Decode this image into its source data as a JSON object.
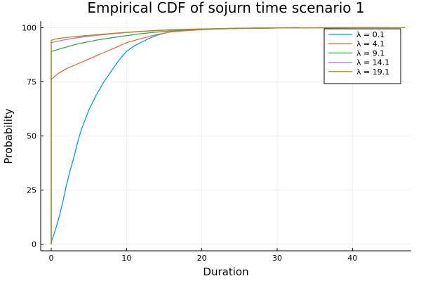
{
  "chart_data": {
    "type": "line",
    "title": "Empirical CDF of sojurn time scenario 1",
    "xlabel": "Duration",
    "ylabel": "Probability",
    "xlim": [
      -1.4,
      47.8
    ],
    "ylim": [
      -3,
      103
    ],
    "xticks": [
      0,
      10,
      20,
      30,
      40
    ],
    "yticks": [
      0,
      25,
      50,
      75,
      100
    ],
    "grid": true,
    "legend_position": "top-right",
    "series": [
      {
        "name": "λ = 0.1",
        "color": "#009AFA",
        "x": [
          0,
          0.5,
          1,
          1.5,
          2,
          2.5,
          3,
          3.5,
          4,
          5,
          6,
          7,
          8,
          9,
          10,
          11,
          12,
          13,
          14,
          15,
          16,
          17,
          18,
          20,
          22,
          25,
          28,
          33
        ],
        "y": [
          1,
          6,
          12,
          19,
          27,
          34,
          40,
          47,
          53,
          62,
          69,
          75,
          80,
          85,
          89,
          91.5,
          93.3,
          95,
          96.4,
          97.4,
          98.1,
          98.6,
          98.9,
          99.3,
          99.5,
          99.7,
          99.85,
          100
        ]
      },
      {
        "name": "λ = 4.1",
        "color": "#E36F47",
        "x": [
          0,
          0,
          0.3,
          1,
          2,
          3,
          4,
          5,
          6,
          7,
          8,
          9,
          10,
          12,
          14,
          16,
          18,
          20,
          22,
          25,
          28,
          32,
          36,
          40,
          41
        ],
        "y": [
          0,
          76,
          77,
          79,
          81,
          82.5,
          84,
          85.5,
          87,
          88.5,
          90,
          91.5,
          93,
          95,
          96.8,
          98,
          98.6,
          99,
          99.3,
          99.6,
          99.8,
          99.9,
          99.95,
          100,
          100
        ]
      },
      {
        "name": "λ = 9.1",
        "color": "#3EA44E",
        "x": [
          0,
          0,
          1,
          2,
          3,
          4,
          5,
          6,
          8,
          10,
          12,
          14,
          16,
          18,
          20,
          25,
          30,
          35,
          40,
          44
        ],
        "y": [
          0,
          89,
          90,
          91,
          92,
          92.8,
          93.5,
          94.2,
          95.3,
          96.3,
          97.2,
          97.9,
          98.5,
          98.9,
          99.2,
          99.6,
          99.8,
          99.9,
          100,
          100
        ]
      },
      {
        "name": "λ = 14.1",
        "color": "#C271D2",
        "x": [
          0,
          0,
          1,
          2,
          4,
          6,
          8,
          10,
          12,
          14,
          16,
          18,
          20,
          25,
          30,
          35,
          40,
          45
        ],
        "y": [
          0,
          93,
          93.8,
          94.5,
          95.6,
          96.4,
          97.1,
          97.7,
          98.2,
          98.6,
          98.9,
          99.1,
          99.3,
          99.6,
          99.8,
          99.9,
          100,
          100
        ]
      },
      {
        "name": "λ = 19.1",
        "color": "#AC8D18",
        "x": [
          0,
          0,
          0.3,
          1,
          2,
          4,
          6,
          8,
          10,
          12,
          14,
          16,
          18,
          20,
          25,
          30,
          35,
          40,
          47
        ],
        "y": [
          0,
          94,
          94.5,
          95,
          95.4,
          96.1,
          96.7,
          97.3,
          97.8,
          98.3,
          98.7,
          99,
          99.2,
          99.4,
          99.6,
          99.8,
          99.9,
          100,
          100
        ]
      }
    ]
  }
}
